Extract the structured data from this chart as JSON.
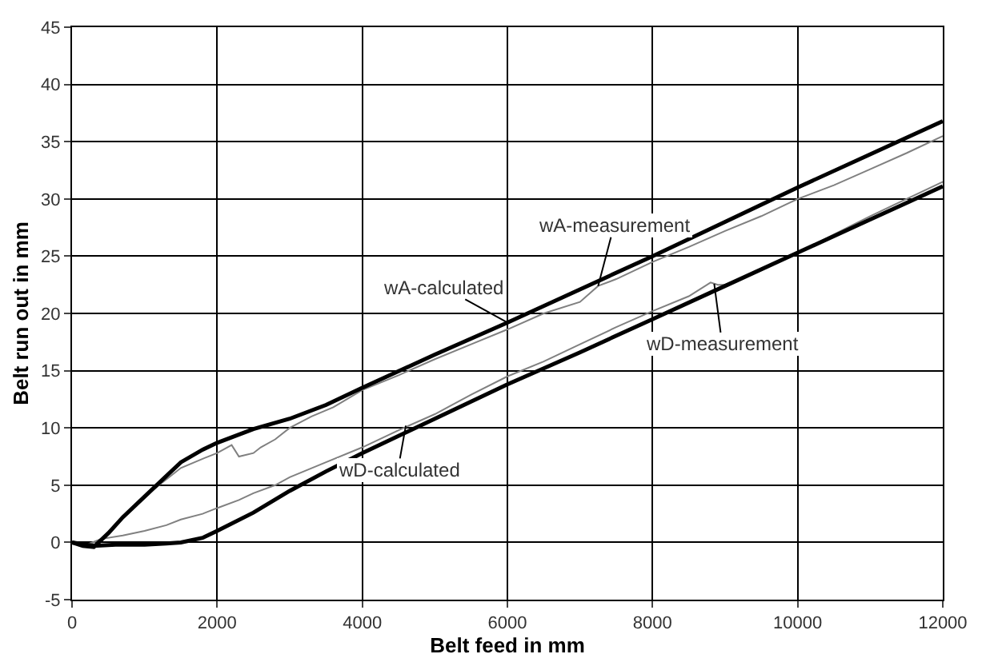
{
  "chart_data": {
    "type": "line",
    "xlabel": "Belt feed in mm",
    "ylabel": "Belt run out in mm",
    "xlim": [
      0,
      12000
    ],
    "xticks": [
      0,
      2000,
      4000,
      6000,
      8000,
      10000,
      12000
    ],
    "ylim": [
      -5,
      45
    ],
    "yticks": [
      -5,
      0,
      5,
      10,
      15,
      20,
      25,
      30,
      35,
      40,
      45
    ],
    "grid": true,
    "marker": "none",
    "line_style": "solid",
    "series": [
      {
        "color": "#808080",
        "x": [
          0,
          200,
          400,
          600,
          800,
          1000,
          1200,
          1500,
          1800,
          2000,
          2200,
          2300,
          2500,
          2600,
          2800,
          3000,
          3300,
          3600,
          4000,
          4500,
          5000,
          5500,
          6000,
          6500,
          7000,
          7250,
          7500,
          8000,
          8500,
          9000,
          9500,
          10000,
          10500,
          11000,
          11500,
          12000
        ],
        "values": [
          0,
          -0.3,
          0.3,
          1.5,
          2.8,
          4,
          5,
          6.5,
          7.3,
          7.8,
          8.5,
          7.5,
          7.8,
          8.3,
          9,
          10,
          11,
          11.8,
          13.3,
          14.6,
          16,
          17.3,
          18.6,
          20,
          21,
          22.4,
          23,
          24.5,
          25.8,
          27.2,
          28.5,
          30,
          31.2,
          32.6,
          34,
          35.5
        ]
      },
      {
        "color": "#808080",
        "x": [
          0,
          200,
          400,
          700,
          1000,
          1300,
          1500,
          1800,
          2000,
          2300,
          2500,
          2800,
          3000,
          3500,
          4000,
          4500,
          5000,
          5500,
          6000,
          6500,
          7000,
          7500,
          8000,
          8500,
          8800,
          8900,
          9000,
          9500,
          10000,
          10500,
          11000,
          11500,
          12000
        ],
        "values": [
          0,
          -0.2,
          0.3,
          0.6,
          1,
          1.5,
          2,
          2.5,
          3,
          3.7,
          4.3,
          5,
          5.7,
          7,
          8.3,
          9.8,
          11.2,
          12.9,
          14.5,
          15.8,
          17.3,
          18.8,
          20.2,
          21.5,
          22.7,
          22.5,
          22.5,
          23.8,
          25.3,
          26.9,
          28.5,
          30,
          31.5
        ]
      },
      {
        "color": "#000000",
        "x": [
          0,
          150,
          300,
          500,
          700,
          1000,
          1300,
          1500,
          1800,
          2000,
          2500,
          3000,
          3500,
          4000,
          5000,
          6000,
          7000,
          8000,
          9000,
          10000,
          11000,
          12000
        ],
        "values": [
          0,
          -0.3,
          -0.4,
          0.8,
          2.2,
          4,
          5.8,
          7,
          8.1,
          8.7,
          9.9,
          10.8,
          12,
          13.5,
          16.4,
          19.2,
          22.1,
          25,
          28,
          31,
          33.9,
          36.8
        ]
      },
      {
        "color": "#000000",
        "x": [
          0,
          300,
          600,
          1000,
          1300,
          1500,
          1800,
          2000,
          2500,
          3000,
          3500,
          4000,
          5000,
          6000,
          7000,
          8000,
          9000,
          10000,
          11000,
          12000
        ],
        "values": [
          0,
          -0.3,
          -0.2,
          -0.2,
          -0.1,
          0,
          0.4,
          1,
          2.6,
          4.5,
          6.2,
          7.8,
          10.8,
          13.8,
          16.6,
          19.5,
          22.4,
          25.3,
          28.2,
          31.1
        ]
      }
    ],
    "annotations": [
      {
        "text": "wA-measurement",
        "x": 7250,
        "y": 22.4
      },
      {
        "text": "wA-calculated",
        "x": 6000,
        "y": 19.2
      },
      {
        "text": "wD-measurement",
        "x": 8850,
        "y": 22.6
      },
      {
        "text": "wD-calculated",
        "x": 4600,
        "y": 10.2
      }
    ]
  }
}
